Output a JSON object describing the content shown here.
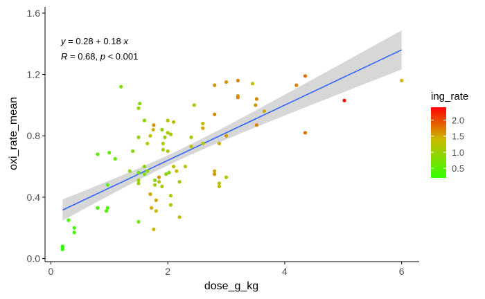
{
  "chart_data": {
    "type": "scatter",
    "xlabel": "dose_g_kg",
    "ylabel": "oxi_rate_mean",
    "xlim": [
      -0.1,
      6.3
    ],
    "ylim": [
      -0.02,
      1.64
    ],
    "x_ticks": [
      0,
      2,
      4,
      6
    ],
    "y_ticks": [
      0.0,
      0.4,
      0.8,
      1.2,
      1.6
    ],
    "x_tick_labels": [
      "0",
      "2",
      "4",
      "6"
    ],
    "y_tick_labels": [
      "0.0",
      "0.4",
      "0.8",
      "1.2",
      "1.6"
    ],
    "grid": false,
    "annotation": {
      "equation": {
        "lhs": "y",
        "rhs": " = 0.28 + 0.18 ",
        "var": "x"
      },
      "stats": {
        "r": "R",
        "r_val": " = 0.68, ",
        "p": "p",
        "p_val": " < 0.001"
      }
    },
    "regression": {
      "intercept": 0.28,
      "slope": 0.18,
      "x_range": [
        0.2,
        6.0
      ],
      "line_color": "#3366ff",
      "band_color": "#d3d3d3"
    },
    "legend": {
      "title": "ing_rate",
      "placement": "right",
      "breaks": [
        0.5,
        1.0,
        1.5,
        2.0
      ],
      "labels": [
        "0.5",
        "1.0",
        "1.5",
        "2.0"
      ],
      "range": [
        0.2,
        2.4
      ],
      "low_color": "#33ff00",
      "high_color": "#ff0000"
    },
    "points": [
      {
        "x": 0.2,
        "y": 0.06,
        "c": 0.2
      },
      {
        "x": 0.2,
        "y": 0.08,
        "c": 0.2
      },
      {
        "x": 0.2,
        "y": 0.07,
        "c": 0.2
      },
      {
        "x": 0.3,
        "y": 0.25,
        "c": 0.3
      },
      {
        "x": 0.4,
        "y": 0.2,
        "c": 0.3
      },
      {
        "x": 0.4,
        "y": 0.17,
        "c": 0.3
      },
      {
        "x": 0.8,
        "y": 0.33,
        "c": 0.4
      },
      {
        "x": 0.8,
        "y": 0.68,
        "c": 0.5
      },
      {
        "x": 0.95,
        "y": 0.31,
        "c": 0.4
      },
      {
        "x": 0.97,
        "y": 0.33,
        "c": 0.4
      },
      {
        "x": 1.0,
        "y": 0.69,
        "c": 0.6
      },
      {
        "x": 0.97,
        "y": 0.48,
        "c": 0.5
      },
      {
        "x": 1.1,
        "y": 0.65,
        "c": 0.6
      },
      {
        "x": 1.2,
        "y": 1.12,
        "c": 0.8
      },
      {
        "x": 1.35,
        "y": 0.57,
        "c": 0.9
      },
      {
        "x": 1.4,
        "y": 0.7,
        "c": 0.9
      },
      {
        "x": 1.5,
        "y": 0.24,
        "c": 0.7
      },
      {
        "x": 1.5,
        "y": 0.98,
        "c": 0.9
      },
      {
        "x": 1.52,
        "y": 1.01,
        "c": 0.9
      },
      {
        "x": 1.5,
        "y": 0.56,
        "c": 0.6
      },
      {
        "x": 1.5,
        "y": 0.49,
        "c": 1.0
      },
      {
        "x": 1.5,
        "y": 0.51,
        "c": 1.0
      },
      {
        "x": 1.6,
        "y": 0.55,
        "c": 0.8
      },
      {
        "x": 1.6,
        "y": 0.6,
        "c": 0.9
      },
      {
        "x": 1.5,
        "y": 0.79,
        "c": 1.0
      },
      {
        "x": 1.6,
        "y": 0.9,
        "c": 0.9
      },
      {
        "x": 1.65,
        "y": 0.75,
        "c": 1.1
      },
      {
        "x": 1.65,
        "y": 0.57,
        "c": 0.8
      },
      {
        "x": 1.7,
        "y": 0.42,
        "c": 1.5
      },
      {
        "x": 1.72,
        "y": 0.33,
        "c": 1.5
      },
      {
        "x": 1.7,
        "y": 0.8,
        "c": 1.3
      },
      {
        "x": 1.75,
        "y": 0.84,
        "c": 1.4
      },
      {
        "x": 1.76,
        "y": 0.87,
        "c": 1.6
      },
      {
        "x": 1.78,
        "y": 0.51,
        "c": 0.9
      },
      {
        "x": 1.78,
        "y": 0.48,
        "c": 1.1
      },
      {
        "x": 1.76,
        "y": 0.19,
        "c": 1.4
      },
      {
        "x": 1.8,
        "y": 0.38,
        "c": 1.5
      },
      {
        "x": 1.8,
        "y": 0.31,
        "c": 1.4
      },
      {
        "x": 1.85,
        "y": 0.53,
        "c": 1.6
      },
      {
        "x": 1.85,
        "y": 0.5,
        "c": 1.2
      },
      {
        "x": 1.9,
        "y": 0.84,
        "c": 1.0
      },
      {
        "x": 1.9,
        "y": 0.47,
        "c": 1.2
      },
      {
        "x": 1.92,
        "y": 0.71,
        "c": 1.0
      },
      {
        "x": 1.92,
        "y": 0.75,
        "c": 1.1
      },
      {
        "x": 1.95,
        "y": 0.79,
        "c": 1.0
      },
      {
        "x": 1.97,
        "y": 0.55,
        "c": 1.0
      },
      {
        "x": 2.0,
        "y": 0.82,
        "c": 1.1
      },
      {
        "x": 2.0,
        "y": 0.7,
        "c": 1.2
      },
      {
        "x": 2.0,
        "y": 0.9,
        "c": 1.2
      },
      {
        "x": 2.02,
        "y": 0.56,
        "c": 0.8
      },
      {
        "x": 2.05,
        "y": 0.41,
        "c": 1.1
      },
      {
        "x": 2.05,
        "y": 0.35,
        "c": 1.2
      },
      {
        "x": 2.05,
        "y": 0.81,
        "c": 1.1
      },
      {
        "x": 2.1,
        "y": 0.6,
        "c": 1.3
      },
      {
        "x": 2.1,
        "y": 0.89,
        "c": 1.3
      },
      {
        "x": 2.15,
        "y": 0.57,
        "c": 1.4
      },
      {
        "x": 2.2,
        "y": 0.5,
        "c": 1.1
      },
      {
        "x": 2.2,
        "y": 0.27,
        "c": 1.3
      },
      {
        "x": 2.3,
        "y": 0.6,
        "c": 1.3
      },
      {
        "x": 2.4,
        "y": 0.79,
        "c": 1.1
      },
      {
        "x": 2.4,
        "y": 0.73,
        "c": 1.3
      },
      {
        "x": 2.45,
        "y": 1.0,
        "c": 1.2
      },
      {
        "x": 2.6,
        "y": 0.75,
        "c": 1.3
      },
      {
        "x": 2.6,
        "y": 0.85,
        "c": 1.5
      },
      {
        "x": 2.6,
        "y": 0.88,
        "c": 1.3
      },
      {
        "x": 2.8,
        "y": 1.13,
        "c": 1.6
      },
      {
        "x": 2.8,
        "y": 0.94,
        "c": 1.7
      },
      {
        "x": 2.8,
        "y": 0.57,
        "c": 1.5
      },
      {
        "x": 2.8,
        "y": 0.55,
        "c": 1.6
      },
      {
        "x": 2.88,
        "y": 0.47,
        "c": 1.3
      },
      {
        "x": 2.88,
        "y": 0.49,
        "c": 1.3
      },
      {
        "x": 2.88,
        "y": 0.75,
        "c": 1.5
      },
      {
        "x": 3.0,
        "y": 1.15,
        "c": 1.6
      },
      {
        "x": 3.0,
        "y": 0.8,
        "c": 1.6
      },
      {
        "x": 3.0,
        "y": 0.53,
        "c": 1.2
      },
      {
        "x": 3.2,
        "y": 1.16,
        "c": 1.7
      },
      {
        "x": 3.2,
        "y": 1.05,
        "c": 1.7
      },
      {
        "x": 3.2,
        "y": 1.06,
        "c": 1.6
      },
      {
        "x": 3.45,
        "y": 1.14,
        "c": 1.3
      },
      {
        "x": 3.5,
        "y": 1.0,
        "c": 1.6
      },
      {
        "x": 3.52,
        "y": 1.04,
        "c": 1.7
      },
      {
        "x": 3.52,
        "y": 0.87,
        "c": 1.7
      },
      {
        "x": 3.65,
        "y": 0.96,
        "c": 1.5
      },
      {
        "x": 4.2,
        "y": 1.13,
        "c": 1.7
      },
      {
        "x": 4.35,
        "y": 1.19,
        "c": 1.8
      },
      {
        "x": 4.35,
        "y": 0.82,
        "c": 1.8
      },
      {
        "x": 5.02,
        "y": 1.03,
        "c": 2.4
      },
      {
        "x": 6.0,
        "y": 1.16,
        "c": 1.4
      }
    ]
  }
}
